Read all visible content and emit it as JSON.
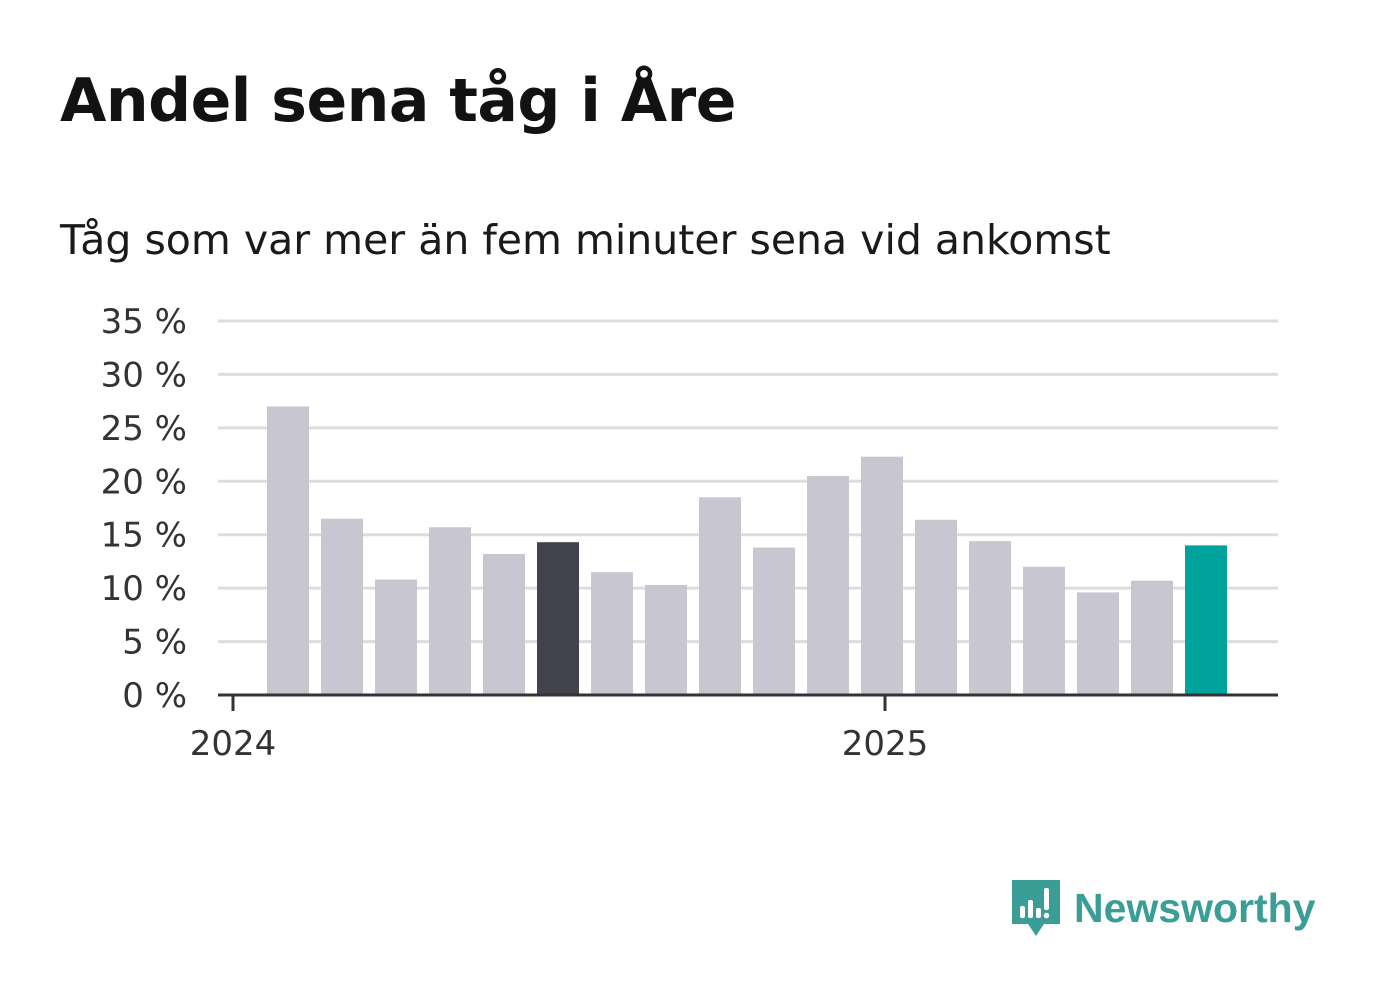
{
  "chart_data": {
    "type": "bar",
    "title": "Andel sena tåg i Åre",
    "subtitle": "Tåg som var mer än fem minuter sena vid ankomst",
    "xlabel": "",
    "ylabel": "",
    "x_tick_labels": [
      "2024",
      "2025"
    ],
    "y_tick_labels": [
      "0 %",
      "5 %",
      "10 %",
      "15 %",
      "20 %",
      "25 %",
      "30 %",
      "35 %"
    ],
    "ylim": [
      0,
      35
    ],
    "grid": true,
    "values": [
      27.0,
      16.5,
      10.8,
      15.7,
      13.2,
      14.3,
      11.5,
      10.3,
      18.5,
      13.8,
      20.5,
      22.3,
      16.4,
      14.4,
      12.0,
      9.6,
      10.7,
      14.0
    ],
    "colors": {
      "default": "#c8c7d1",
      "highlight_dark": "#43424f",
      "highlight_latest": "#00a39b",
      "grid": "#dddddd",
      "axis": "#333333"
    },
    "highlight_dark_index": 5,
    "highlight_latest_index": 17
  },
  "brand": {
    "name": "Newsworthy",
    "icon": "newsworthy-logo-icon",
    "color": "#3a9e96"
  }
}
